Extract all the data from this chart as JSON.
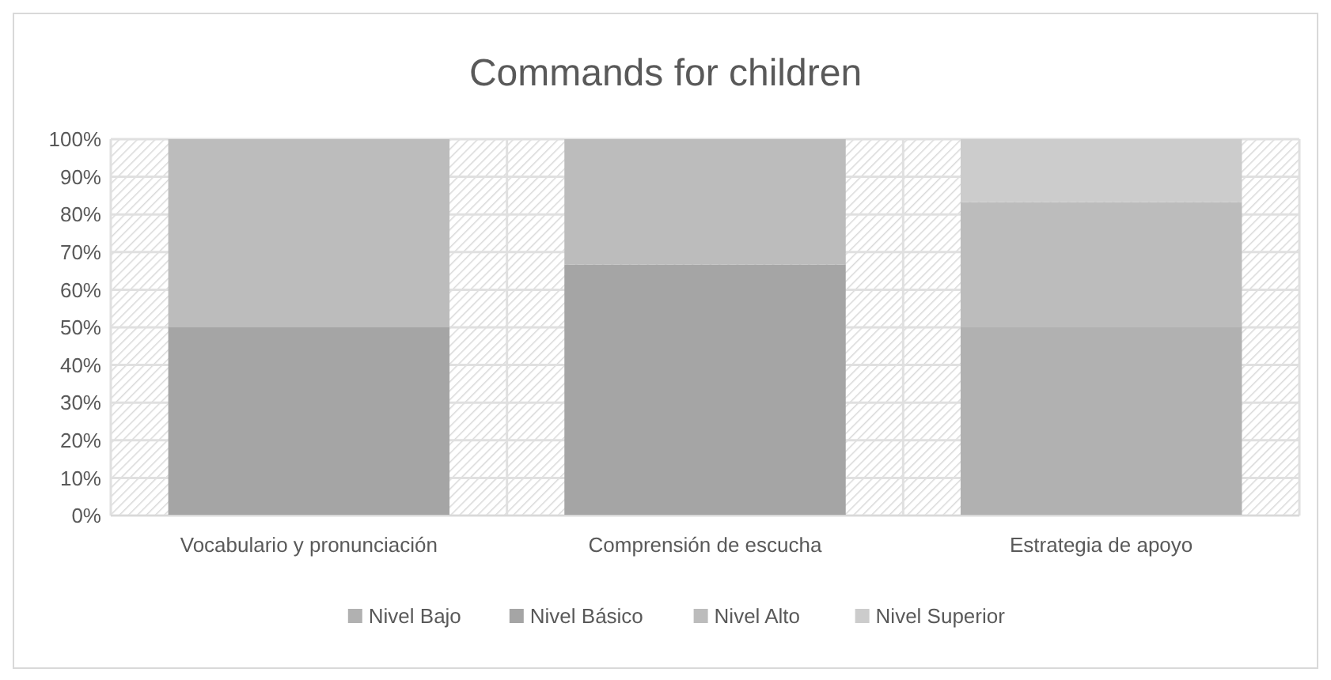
{
  "chart_data": {
    "type": "bar",
    "title": "Commands for children",
    "categories": [
      "Vocabulario y pronunciación",
      "Comprensión de escucha",
      "Estrategia de apoyo"
    ],
    "stacked": true,
    "series": [
      {
        "name": "Nivel Bajo",
        "color": "#b1b1b1",
        "values": [
          0,
          0,
          50
        ]
      },
      {
        "name": "Nivel Básico",
        "color": "#a5a5a5",
        "values": [
          50,
          66.7,
          0
        ]
      },
      {
        "name": "Nivel Alto",
        "color": "#bcbcbc",
        "values": [
          50,
          33.3,
          33.3
        ]
      },
      {
        "name": "Nivel Superior",
        "color": "#cccccc",
        "values": [
          0,
          0,
          16.7
        ]
      }
    ],
    "ylim": [
      0,
      100
    ],
    "yticks": [
      {
        "value": 0,
        "label": "0%"
      },
      {
        "value": 10,
        "label": "10%"
      },
      {
        "value": 20,
        "label": "20%"
      },
      {
        "value": 30,
        "label": "30%"
      },
      {
        "value": 40,
        "label": "40%"
      },
      {
        "value": 50,
        "label": "50%"
      },
      {
        "value": 60,
        "label": "60%"
      },
      {
        "value": 70,
        "label": "70%"
      },
      {
        "value": 80,
        "label": "80%"
      },
      {
        "value": 90,
        "label": "90%"
      },
      {
        "value": 100,
        "label": "100%"
      }
    ],
    "grid": true,
    "legend": "bottom"
  }
}
